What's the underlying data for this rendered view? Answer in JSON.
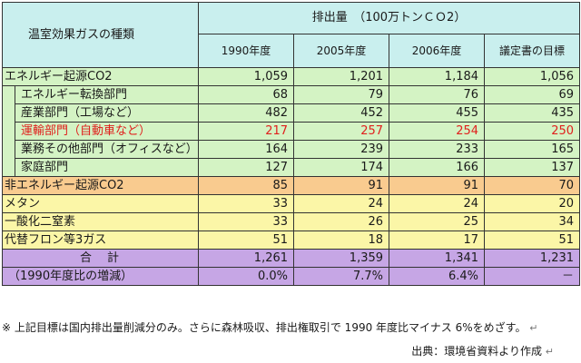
{
  "header": {
    "category_label": "温室効果ガスの種類",
    "emissions_label": "排出量　（100万トンＣＯ2）",
    "columns": [
      "1990年度",
      "2005年度",
      "2006年度",
      "議定書の目標"
    ]
  },
  "rows": [
    {
      "label": "エネルギー起源CO2",
      "values": [
        "1,059",
        "1,201",
        "1,184",
        "1,056"
      ],
      "group": "green",
      "sub": false,
      "red": false
    },
    {
      "label": "エネルギー転換部門",
      "values": [
        "68",
        "79",
        "76",
        "69"
      ],
      "group": "green",
      "sub": true,
      "red": false
    },
    {
      "label": "産業部門（工場など）",
      "values": [
        "482",
        "452",
        "455",
        "435"
      ],
      "group": "green",
      "sub": true,
      "red": false
    },
    {
      "label": "運輸部門（自動車など）",
      "values": [
        "217",
        "257",
        "254",
        "250"
      ],
      "group": "green",
      "sub": true,
      "red": true
    },
    {
      "label": "業務その他部門（オフィスなど）",
      "values": [
        "164",
        "239",
        "233",
        "165"
      ],
      "group": "green",
      "sub": true,
      "red": false
    },
    {
      "label": "家庭部門",
      "values": [
        "127",
        "174",
        "166",
        "137"
      ],
      "group": "green",
      "sub": true,
      "red": false
    },
    {
      "label": "非エネルギー起源CO2",
      "values": [
        "85",
        "91",
        "91",
        "70"
      ],
      "group": "orange",
      "sub": false,
      "red": false
    },
    {
      "label": "メタン",
      "values": [
        "33",
        "24",
        "24",
        "20"
      ],
      "group": "yellow",
      "sub": false,
      "red": false
    },
    {
      "label": "一酸化二窒素",
      "values": [
        "33",
        "26",
        "25",
        "34"
      ],
      "group": "yellow",
      "sub": false,
      "red": false
    },
    {
      "label": "代替フロン等3ガス",
      "values": [
        "51",
        "18",
        "17",
        "51"
      ],
      "group": "yellow",
      "sub": false,
      "red": false
    }
  ],
  "total": {
    "label": "合　計",
    "values": [
      "1,261",
      "1,359",
      "1,341",
      "1,231"
    ]
  },
  "change": {
    "label": "（1990年度比の増減）",
    "values": [
      "0.0%",
      "7.7%",
      "6.4%",
      "－"
    ]
  },
  "footnote": "※ 上記目標は国内排出量削減分のみ。さらに森林吸収、排出権取引で 1990 年度比マイナス 6%をめざす。",
  "source": "出典：環境省資料より作成",
  "return_mark": "↵"
}
